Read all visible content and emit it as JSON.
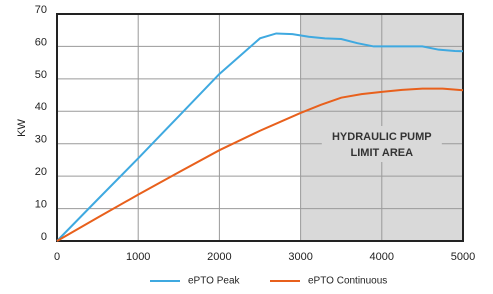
{
  "chart_data": {
    "type": "line",
    "y_label": "KW",
    "annotation": [
      "HYDRAULIC PUMP",
      "LIMIT AREA"
    ],
    "shaded_region": [
      3000,
      5000
    ],
    "xlim": [
      0,
      5000
    ],
    "xticks": [
      0,
      1000,
      2000,
      3000,
      4000,
      5000
    ],
    "ylim": [
      0,
      70
    ],
    "yticks": [
      0,
      10,
      20,
      30,
      40,
      50,
      60,
      70
    ],
    "grid": true,
    "series": [
      {
        "name": "ePTO Peak",
        "color": "#3fa9e0",
        "x": [
          0,
          500,
          1000,
          1500,
          2000,
          2500,
          2700,
          2900,
          3100,
          3300,
          3500,
          3700,
          3900,
          4100,
          4300,
          4500,
          4700,
          4900,
          5000
        ],
        "values": [
          0,
          12.8,
          25.5,
          38.5,
          51.5,
          62.5,
          64,
          63.8,
          63,
          62.5,
          62.3,
          61,
          60,
          60,
          60,
          60,
          59,
          58.6,
          58.5
        ]
      },
      {
        "name": "ePTO Continuous",
        "color": "#e8601c",
        "x": [
          0,
          500,
          1000,
          1500,
          2000,
          2500,
          3000,
          3250,
          3500,
          3750,
          4000,
          4250,
          4500,
          4750,
          5000
        ],
        "values": [
          0,
          7.2,
          14.3,
          21.2,
          28,
          34,
          39.5,
          42,
          44.2,
          45.3,
          46,
          46.6,
          47,
          47,
          46.5
        ]
      }
    ]
  }
}
